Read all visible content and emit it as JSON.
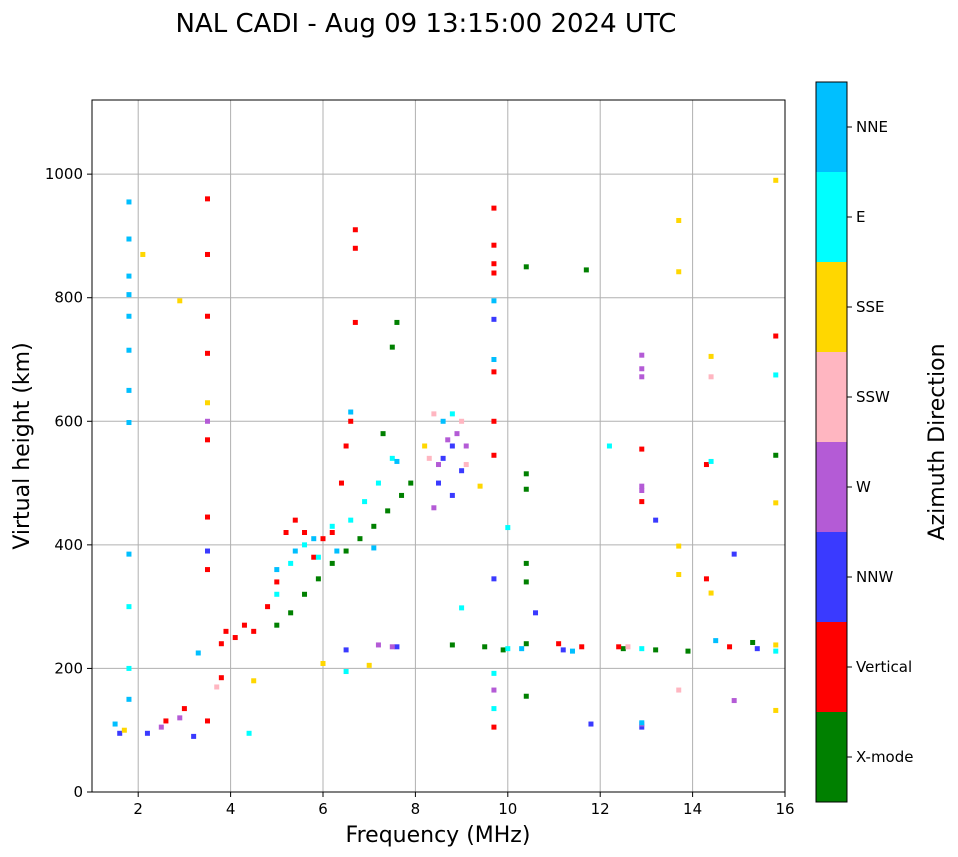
{
  "chart_data": {
    "type": "scatter",
    "title": "NAL CADI - Aug 09 13:15:00 2024 UTC",
    "xlabel": "Frequency (MHz)",
    "ylabel": "Virtual height (km)",
    "xlim": [
      1,
      16
    ],
    "ylim": [
      0,
      1120
    ],
    "xticks": [
      2,
      4,
      6,
      8,
      10,
      12,
      14,
      16
    ],
    "yticks": [
      0,
      200,
      400,
      600,
      800,
      1000
    ],
    "grid": true,
    "colorbar": {
      "label": "Azimuth Direction",
      "categories": [
        {
          "name": "X-mode",
          "color": "#008000"
        },
        {
          "name": "Vertical",
          "color": "#ff0000"
        },
        {
          "name": "NNW",
          "color": "#3a3aff"
        },
        {
          "name": "W",
          "color": "#b45bd6"
        },
        {
          "name": "SSW",
          "color": "#ffb6c1"
        },
        {
          "name": "SSE",
          "color": "#ffd700"
        },
        {
          "name": "E",
          "color": "#00ffff"
        },
        {
          "name": "NNE",
          "color": "#00bfff"
        }
      ]
    },
    "series": [
      {
        "name": "X-mode",
        "points": [
          [
            5.0,
            270
          ],
          [
            5.3,
            290
          ],
          [
            5.6,
            320
          ],
          [
            5.9,
            345
          ],
          [
            6.2,
            370
          ],
          [
            6.5,
            390
          ],
          [
            6.8,
            410
          ],
          [
            7.1,
            430
          ],
          [
            7.4,
            455
          ],
          [
            7.7,
            480
          ],
          [
            7.9,
            500
          ],
          [
            7.6,
            760
          ],
          [
            7.5,
            720
          ],
          [
            7.3,
            580
          ],
          [
            9.9,
            230
          ],
          [
            10.4,
            240
          ],
          [
            10.4,
            370
          ],
          [
            10.4,
            340
          ],
          [
            10.4,
            155
          ],
          [
            10.4,
            490
          ],
          [
            10.4,
            515
          ],
          [
            10.4,
            850
          ],
          [
            11.7,
            845
          ],
          [
            12.5,
            232
          ],
          [
            13.2,
            230
          ],
          [
            13.9,
            228
          ],
          [
            15.8,
            545
          ],
          [
            15.3,
            242
          ],
          [
            8.8,
            238
          ],
          [
            9.5,
            235
          ]
        ]
      },
      {
        "name": "Vertical",
        "points": [
          [
            3.8,
            240
          ],
          [
            3.9,
            260
          ],
          [
            4.1,
            250
          ],
          [
            4.3,
            270
          ],
          [
            4.5,
            260
          ],
          [
            4.8,
            300
          ],
          [
            5.0,
            340
          ],
          [
            5.2,
            420
          ],
          [
            5.4,
            440
          ],
          [
            5.6,
            420
          ],
          [
            5.8,
            380
          ],
          [
            6.0,
            410
          ],
          [
            6.2,
            420
          ],
          [
            6.4,
            500
          ],
          [
            6.5,
            560
          ],
          [
            6.6,
            600
          ],
          [
            6.7,
            760
          ],
          [
            6.7,
            880
          ],
          [
            6.7,
            910
          ],
          [
            3.5,
            960
          ],
          [
            3.5,
            870
          ],
          [
            3.5,
            770
          ],
          [
            3.5,
            710
          ],
          [
            3.5,
            570
          ],
          [
            3.5,
            445
          ],
          [
            3.5,
            360
          ],
          [
            9.7,
            945
          ],
          [
            9.7,
            885
          ],
          [
            9.7,
            855
          ],
          [
            9.7,
            840
          ],
          [
            9.7,
            680
          ],
          [
            9.7,
            600
          ],
          [
            9.7,
            545
          ],
          [
            9.7,
            105
          ],
          [
            11.1,
            240
          ],
          [
            11.6,
            235
          ],
          [
            12.4,
            235
          ],
          [
            12.9,
            555
          ],
          [
            12.9,
            470
          ],
          [
            14.3,
            345
          ],
          [
            14.3,
            530
          ],
          [
            14.8,
            235
          ],
          [
            15.8,
            738
          ],
          [
            3.0,
            135
          ],
          [
            2.6,
            115
          ],
          [
            3.5,
            115
          ],
          [
            3.8,
            185
          ]
        ]
      },
      {
        "name": "NNW",
        "points": [
          [
            2.2,
            95
          ],
          [
            3.2,
            90
          ],
          [
            6.5,
            230
          ],
          [
            7.6,
            235
          ],
          [
            8.6,
            540
          ],
          [
            8.8,
            560
          ],
          [
            9.0,
            520
          ],
          [
            8.8,
            480
          ],
          [
            10.6,
            290
          ],
          [
            11.2,
            230
          ],
          [
            11.8,
            110
          ],
          [
            12.9,
            105
          ],
          [
            13.2,
            440
          ],
          [
            14.9,
            385
          ],
          [
            15.4,
            232
          ],
          [
            9.7,
            765
          ],
          [
            9.7,
            345
          ],
          [
            3.5,
            390
          ],
          [
            1.6,
            95
          ],
          [
            8.5,
            500
          ]
        ]
      },
      {
        "name": "W",
        "points": [
          [
            2.5,
            105
          ],
          [
            2.9,
            120
          ],
          [
            7.2,
            238
          ],
          [
            8.5,
            530
          ],
          [
            8.7,
            570
          ],
          [
            8.9,
            580
          ],
          [
            9.1,
            560
          ],
          [
            8.4,
            460
          ],
          [
            12.9,
            707
          ],
          [
            12.9,
            685
          ],
          [
            12.9,
            672
          ],
          [
            12.9,
            495
          ],
          [
            12.9,
            488
          ],
          [
            12.9,
            110
          ],
          [
            14.9,
            148
          ],
          [
            7.5,
            235
          ],
          [
            9.7,
            165
          ],
          [
            3.5,
            600
          ]
        ]
      },
      {
        "name": "SSW",
        "points": [
          [
            3.7,
            170
          ],
          [
            8.4,
            612
          ],
          [
            8.3,
            540
          ],
          [
            9.0,
            600
          ],
          [
            12.6,
            235
          ],
          [
            13.7,
            165
          ],
          [
            14.4,
            672
          ],
          [
            9.1,
            530
          ]
        ]
      },
      {
        "name": "SSE",
        "points": [
          [
            2.1,
            870
          ],
          [
            3.5,
            630
          ],
          [
            4.5,
            180
          ],
          [
            6.0,
            208
          ],
          [
            7.0,
            205
          ],
          [
            8.2,
            560
          ],
          [
            9.4,
            495
          ],
          [
            13.7,
            925
          ],
          [
            13.7,
            842
          ],
          [
            13.7,
            398
          ],
          [
            13.7,
            352
          ],
          [
            14.4,
            705
          ],
          [
            14.4,
            322
          ],
          [
            15.8,
            990
          ],
          [
            15.8,
            468
          ],
          [
            15.8,
            132
          ],
          [
            15.8,
            238
          ],
          [
            2.9,
            795
          ],
          [
            1.7,
            100
          ]
        ]
      },
      {
        "name": "E",
        "points": [
          [
            1.8,
            300
          ],
          [
            1.8,
            200
          ],
          [
            4.4,
            95
          ],
          [
            5.0,
            320
          ],
          [
            5.3,
            370
          ],
          [
            5.6,
            400
          ],
          [
            5.9,
            380
          ],
          [
            6.2,
            430
          ],
          [
            6.6,
            440
          ],
          [
            6.9,
            470
          ],
          [
            7.2,
            500
          ],
          [
            7.5,
            540
          ],
          [
            8.8,
            612
          ],
          [
            9.0,
            298
          ],
          [
            10.0,
            232
          ],
          [
            12.2,
            560
          ],
          [
            12.9,
            232
          ],
          [
            14.4,
            535
          ],
          [
            15.8,
            675
          ],
          [
            15.8,
            228
          ],
          [
            9.7,
            192
          ],
          [
            9.7,
            135
          ],
          [
            10.0,
            428
          ],
          [
            6.5,
            195
          ]
        ]
      },
      {
        "name": "NNE",
        "points": [
          [
            1.8,
            955
          ],
          [
            1.8,
            895
          ],
          [
            1.8,
            835
          ],
          [
            1.8,
            805
          ],
          [
            1.8,
            770
          ],
          [
            1.8,
            715
          ],
          [
            1.8,
            650
          ],
          [
            1.8,
            598
          ],
          [
            1.8,
            385
          ],
          [
            1.8,
            150
          ],
          [
            3.3,
            225
          ],
          [
            5.0,
            360
          ],
          [
            5.4,
            390
          ],
          [
            5.8,
            410
          ],
          [
            6.3,
            390
          ],
          [
            6.6,
            615
          ],
          [
            7.1,
            395
          ],
          [
            7.6,
            535
          ],
          [
            8.6,
            600
          ],
          [
            9.7,
            795
          ],
          [
            9.7,
            700
          ],
          [
            10.3,
            232
          ],
          [
            11.4,
            228
          ],
          [
            12.9,
            112
          ],
          [
            14.5,
            245
          ],
          [
            1.5,
            110
          ]
        ]
      }
    ]
  }
}
